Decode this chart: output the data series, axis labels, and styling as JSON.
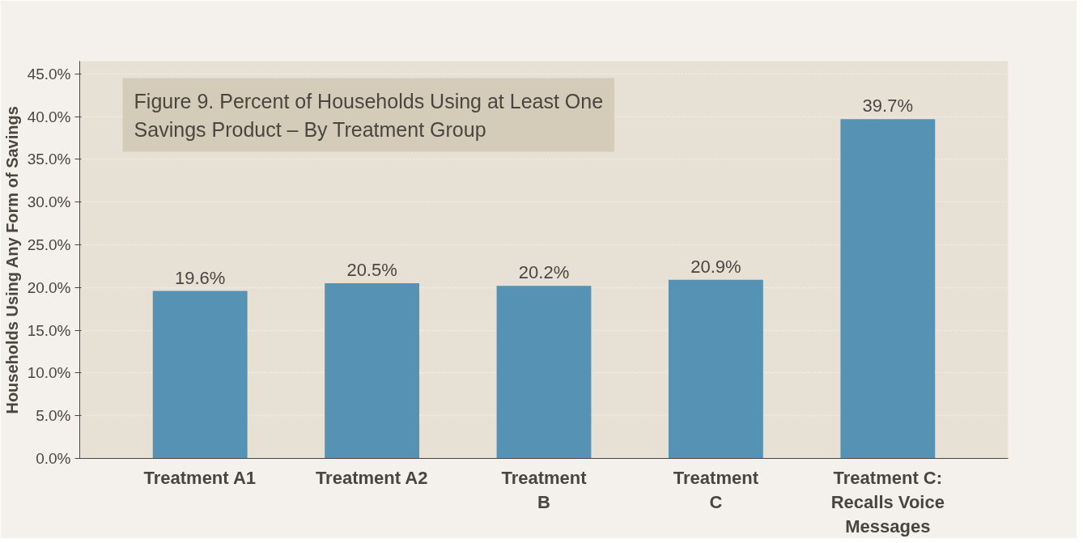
{
  "chart_data": {
    "type": "bar",
    "title": "Figure 9. Percent of Households Using at Least One Savings Product – By Treatment Group",
    "ylabel": "Households Using Any Form of Savings",
    "categories": [
      "Treatment A1",
      "Treatment A2",
      "Treatment\nB",
      "Treatment\nC",
      "Treatment C:\nRecalls Voice\nMessages"
    ],
    "values": [
      19.6,
      20.5,
      20.2,
      20.9,
      39.7
    ],
    "color": "#5592b3",
    "value_labels": [
      "19.6%",
      "20.5%",
      "20.2%",
      "20.9%",
      "39.7%"
    ],
    "ylim": [
      0,
      46.5
    ],
    "yticks": [
      {
        "value": 0,
        "label": "0.0%"
      },
      {
        "value": 5,
        "label": "5.0%"
      },
      {
        "value": 10,
        "label": "10.0%"
      },
      {
        "value": 15,
        "label": "15.0%"
      },
      {
        "value": 20,
        "label": "20.0%"
      },
      {
        "value": 25,
        "label": "25.0%"
      },
      {
        "value": 30,
        "label": "30.0%"
      },
      {
        "value": 35,
        "label": "35.0%"
      },
      {
        "value": 40,
        "label": "40.0%"
      },
      {
        "value": 45,
        "label": "45.0%"
      }
    ],
    "grid": "y"
  }
}
